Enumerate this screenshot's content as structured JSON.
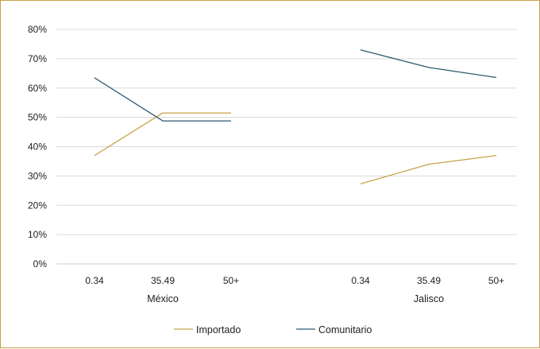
{
  "chart_data": {
    "type": "line",
    "ylim": [
      0,
      0.8
    ],
    "yticks": [
      "0%",
      "10%",
      "20%",
      "30%",
      "40%",
      "50%",
      "60%",
      "70%",
      "80%"
    ],
    "groups": [
      {
        "name": "México",
        "categories": [
          "0.34",
          "35.49",
          "50+"
        ]
      },
      {
        "name": "Jalisco",
        "categories": [
          "0.34",
          "35.49",
          "50+"
        ]
      }
    ],
    "series": [
      {
        "name": "Importado",
        "color": "#c8a24a",
        "values": {
          "México": [
            0.37,
            0.515,
            0.515
          ],
          "Jalisco": [
            0.273,
            0.34,
            0.37
          ]
        }
      },
      {
        "name": "Comunitario",
        "color": "#2e5a72",
        "values": {
          "México": [
            0.635,
            0.488,
            0.488
          ],
          "Jalisco": [
            0.73,
            0.67,
            0.636
          ]
        }
      }
    ],
    "grid": true,
    "legend": "bottom"
  }
}
